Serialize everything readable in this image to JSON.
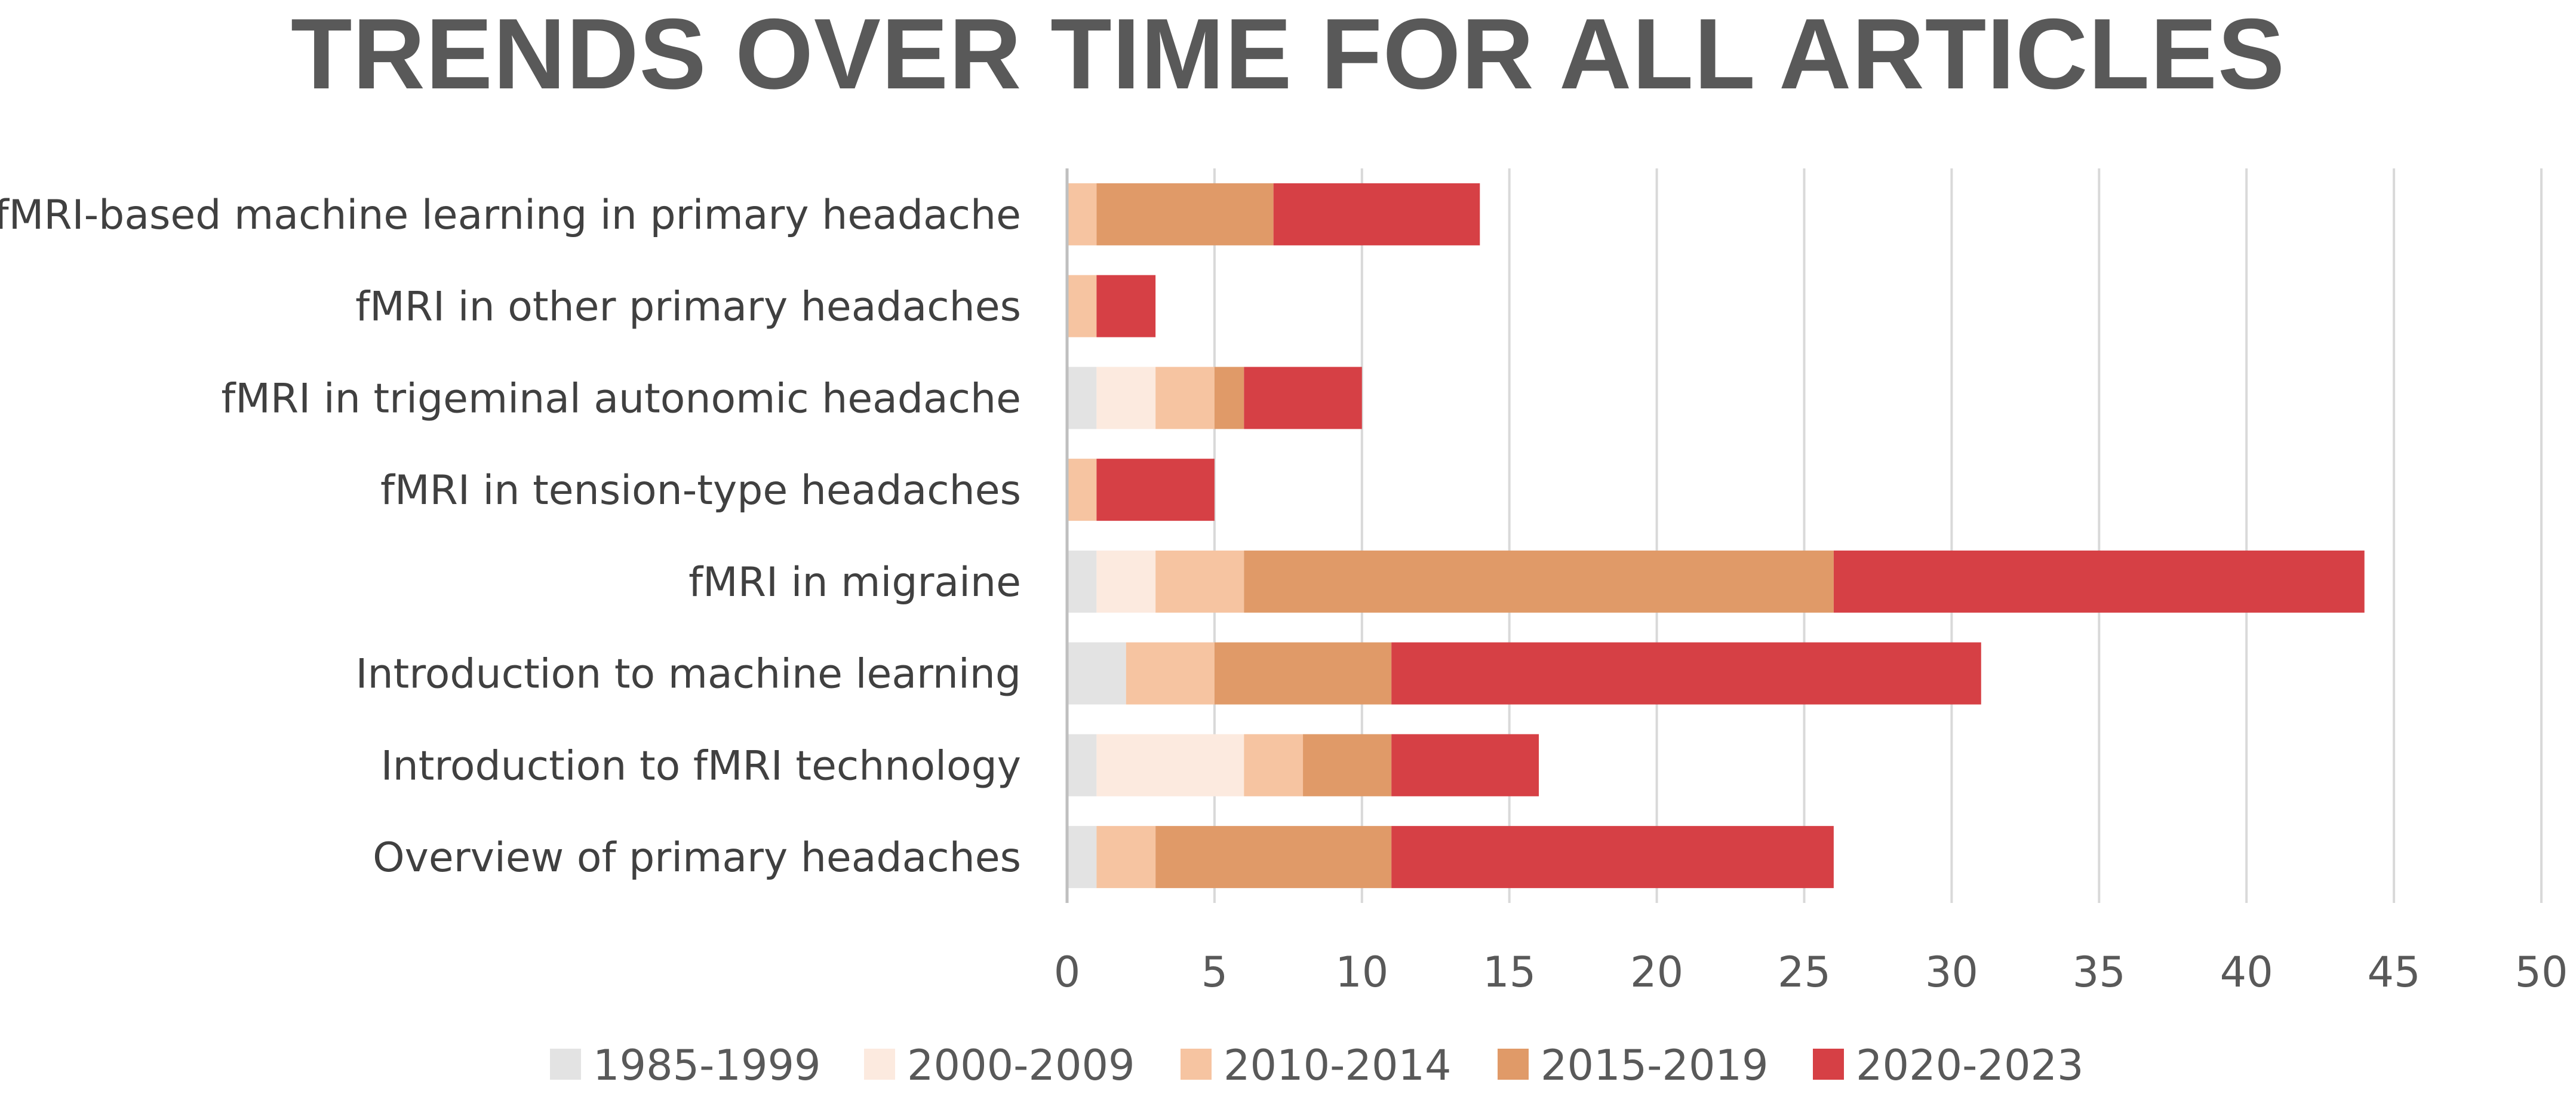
{
  "chart_data": {
    "type": "bar",
    "orientation": "horizontal",
    "stacked": true,
    "title": "TRENDS OVER TIME FOR ALL ARTICLES",
    "categories": [
      "fMRI-based machine learning in primary headache",
      "fMRI in other primary headaches",
      "fMRI in trigeminal autonomic headache",
      "fMRI in tension-type headaches",
      "fMRI in migraine",
      "Introduction to machine learning",
      "Introduction to fMRI technology",
      "Overview of primary headaches"
    ],
    "series": [
      {
        "name": "1985-1999",
        "color": "#E3E3E3",
        "values": [
          0,
          0,
          1,
          0,
          1,
          2,
          1,
          1
        ]
      },
      {
        "name": "2000-2009",
        "color": "#FCEADF",
        "values": [
          0,
          0,
          2,
          0,
          2,
          0,
          5,
          0
        ]
      },
      {
        "name": "2010-2014",
        "color": "#F6C4A1",
        "values": [
          1,
          1,
          2,
          1,
          3,
          3,
          2,
          2
        ]
      },
      {
        "name": "2015-2019",
        "color": "#E09A68",
        "values": [
          6,
          0,
          1,
          0,
          20,
          6,
          3,
          8
        ]
      },
      {
        "name": "2020-2023",
        "color": "#D64045",
        "values": [
          7,
          2,
          4,
          4,
          18,
          20,
          5,
          15
        ]
      }
    ],
    "xlim": [
      0,
      50
    ],
    "xticks": [
      "0",
      "5",
      "10",
      "15",
      "20",
      "25",
      "30",
      "35",
      "40",
      "45",
      "50"
    ],
    "grid": true,
    "legend_position": "bottom"
  }
}
